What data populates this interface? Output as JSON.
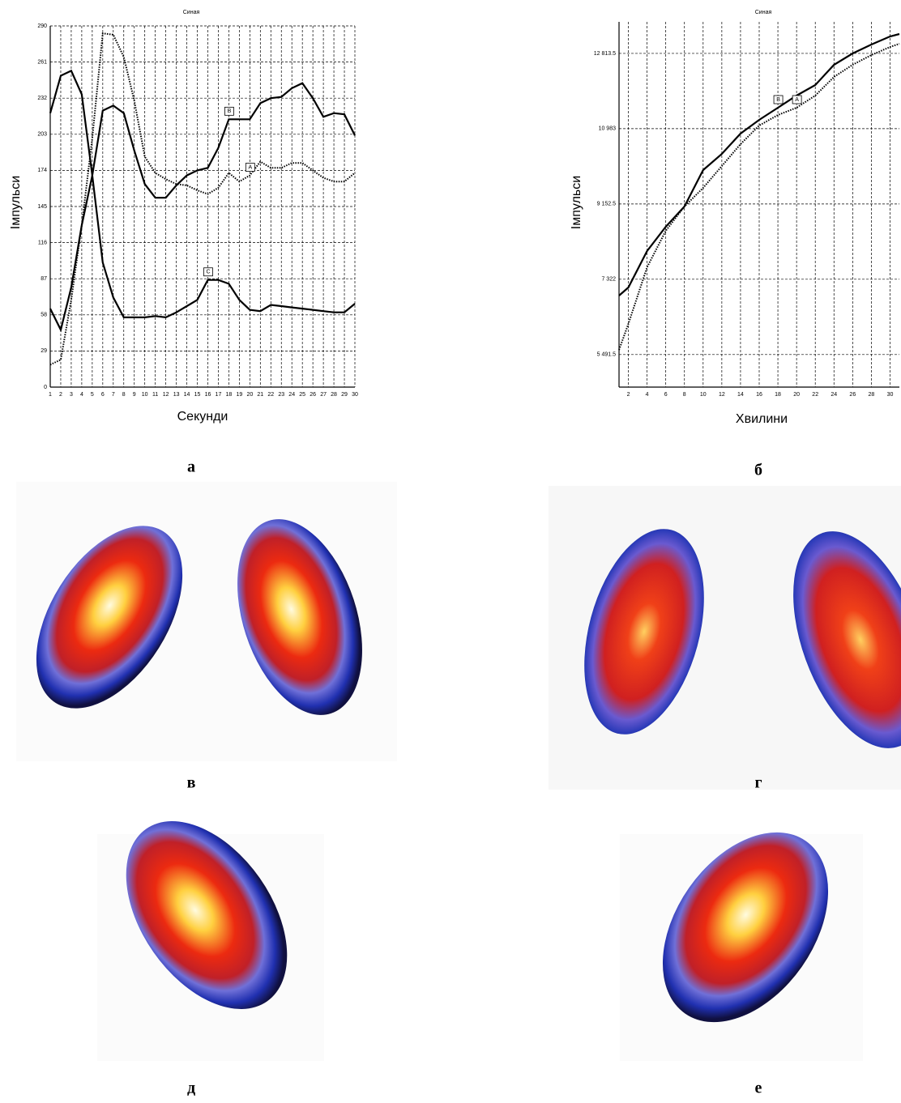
{
  "chart_data": [
    {
      "type": "line",
      "title": "Синая",
      "x_label": "Секунди",
      "y_label": "Імпульси",
      "x": [
        1,
        2,
        3,
        4,
        5,
        6,
        7,
        8,
        9,
        10,
        11,
        12,
        13,
        14,
        15,
        16,
        17,
        18,
        19,
        20,
        21,
        22,
        23,
        24,
        25,
        26,
        27,
        28,
        29,
        30
      ],
      "xlim": [
        1,
        30
      ],
      "ylim": [
        0,
        290
      ],
      "xticks": [
        1,
        2,
        3,
        4,
        5,
        6,
        7,
        8,
        9,
        10,
        11,
        12,
        13,
        14,
        15,
        16,
        17,
        18,
        19,
        20,
        21,
        22,
        23,
        24,
        25,
        26,
        27,
        28,
        29,
        30
      ],
      "yticks": [
        0,
        29,
        58,
        87,
        116,
        145,
        174,
        203,
        232,
        261,
        290
      ],
      "grid": true,
      "series": [
        {
          "name": "B",
          "color": "#000000",
          "style": "solid",
          "values": [
            63,
            46,
            80,
            130,
            170,
            222,
            226,
            220,
            190,
            163,
            152,
            152,
            162,
            170,
            174,
            176,
            192,
            215,
            215,
            215,
            228,
            232,
            233,
            240,
            244,
            232,
            217,
            220,
            219,
            202
          ]
        },
        {
          "name": "A",
          "color": "#000000",
          "style": "dotted",
          "values": [
            18,
            22,
            70,
            130,
            200,
            284,
            283,
            265,
            230,
            185,
            172,
            167,
            163,
            162,
            158,
            155,
            160,
            172,
            165,
            170,
            181,
            176,
            176,
            180,
            180,
            174,
            168,
            165,
            165,
            172
          ]
        },
        {
          "name": "C",
          "color": "#000000",
          "style": "solid",
          "values": [
            220,
            250,
            254,
            235,
            170,
            100,
            72,
            56,
            56,
            56,
            57,
            56,
            60,
            65,
            70,
            86,
            86,
            83,
            70,
            62,
            61,
            66,
            65,
            64,
            63,
            62,
            61,
            60,
            60,
            67
          ]
        }
      ]
    },
    {
      "type": "line",
      "title": "Синая",
      "x_label": "Хвилини",
      "y_label": "Імпульси",
      "x": [
        1,
        2,
        4,
        6,
        8,
        10,
        12,
        14,
        16,
        18,
        20,
        22,
        24,
        26,
        28,
        30,
        31
      ],
      "xlim": [
        1,
        31
      ],
      "ylim": [
        4700,
        13580
      ],
      "xticks": [
        2,
        4,
        6,
        8,
        10,
        12,
        14,
        16,
        18,
        20,
        22,
        24,
        26,
        28,
        30
      ],
      "yticks": [
        {
          "value": 5491.5,
          "label": "5 491.5"
        },
        {
          "value": 7322,
          "label": "7 322"
        },
        {
          "value": 9152.5,
          "label": "9 152.5"
        },
        {
          "value": 10983,
          "label": "10 983"
        },
        {
          "value": 12813.5,
          "label": "12 813.5"
        }
      ],
      "grid": true,
      "series": [
        {
          "name": "B",
          "color": "#000000",
          "style": "solid",
          "values": [
            6925,
            7122,
            8008,
            8599,
            9091,
            9977,
            10371,
            10863,
            11198,
            11493,
            11789,
            12045,
            12537,
            12812,
            13029,
            13226,
            13285
          ]
        },
        {
          "name": "A",
          "color": "#000000",
          "style": "dotted",
          "values": [
            5606,
            6236,
            7614,
            8500,
            9091,
            9544,
            10075,
            10607,
            11060,
            11316,
            11493,
            11789,
            12242,
            12537,
            12773,
            12970,
            13049
          ]
        }
      ]
    }
  ],
  "panel_labels": [
    "а",
    "б",
    "в",
    "г",
    "д",
    "е"
  ]
}
